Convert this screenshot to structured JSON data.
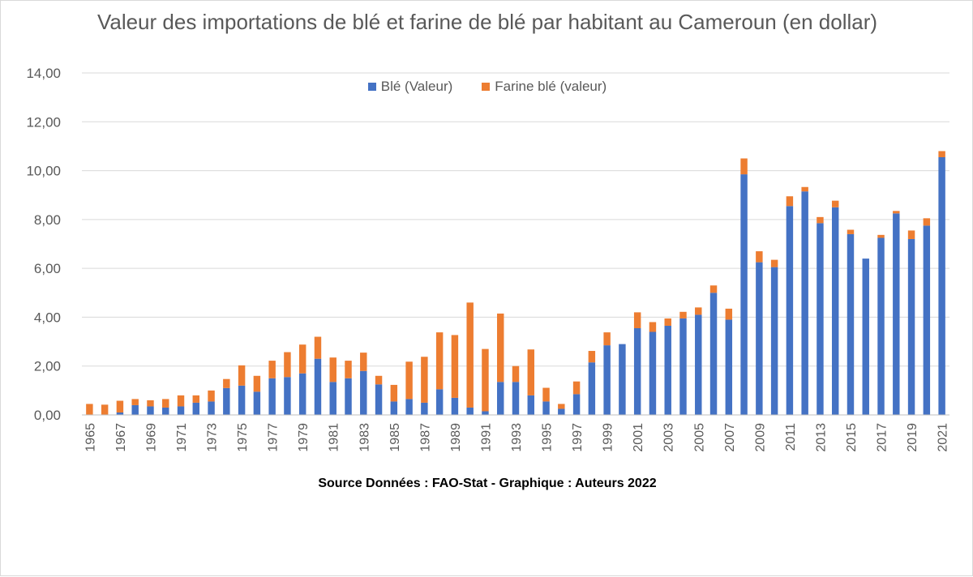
{
  "chart_data": {
    "type": "bar",
    "stacked": true,
    "title": "Valeur des importations de blé et farine de blé par habitant au Cameroun (en dollar)",
    "xlabel": "Source Données : FAO-Stat - Graphique : Auteurs 2022",
    "ylabel": "",
    "ylim": [
      0,
      14
    ],
    "yticks": [
      "0,00",
      "2,00",
      "4,00",
      "6,00",
      "8,00",
      "10,00",
      "12,00",
      "14,00"
    ],
    "grid": true,
    "legend_position": "top",
    "categories": [
      "1965",
      "1966",
      "1967",
      "1968",
      "1969",
      "1970",
      "1971",
      "1972",
      "1973",
      "1974",
      "1975",
      "1976",
      "1977",
      "1978",
      "1979",
      "1980",
      "1981",
      "1982",
      "1983",
      "1984",
      "1985",
      "1986",
      "1987",
      "1988",
      "1989",
      "1990",
      "1991",
      "1992",
      "1993",
      "1994",
      "1995",
      "1996",
      "1997",
      "1998",
      "1999",
      "2000",
      "2001",
      "2002",
      "2003",
      "2004",
      "2005",
      "2006",
      "2007",
      "2008",
      "2009",
      "2010",
      "2011",
      "2012",
      "2013",
      "2014",
      "2015",
      "2016",
      "2017",
      "2018",
      "2019",
      "2020",
      "2021"
    ],
    "x_tick_labels": [
      "1965",
      "1967",
      "1969",
      "1971",
      "1973",
      "1975",
      "1977",
      "1979",
      "1981",
      "1983",
      "1985",
      "1987",
      "1989",
      "1991",
      "1993",
      "1995",
      "1997",
      "1999",
      "2001",
      "2003",
      "2005",
      "2007",
      "2009",
      "2011",
      "2013",
      "2015",
      "2017",
      "2019",
      "2021"
    ],
    "series": [
      {
        "name": "Blé (Valeur)",
        "color": "#4472c4",
        "values": [
          0.0,
          0.0,
          0.1,
          0.4,
          0.35,
          0.3,
          0.35,
          0.5,
          0.55,
          1.1,
          1.2,
          0.95,
          1.5,
          1.55,
          1.7,
          2.3,
          1.35,
          1.5,
          1.8,
          1.25,
          0.55,
          0.65,
          0.5,
          1.05,
          0.7,
          0.3,
          0.15,
          1.35,
          1.35,
          0.8,
          0.55,
          0.25,
          0.85,
          2.15,
          2.85,
          2.9,
          3.55,
          3.4,
          3.65,
          3.95,
          4.1,
          5.0,
          3.9,
          9.85,
          6.25,
          6.05,
          8.55,
          9.15,
          7.85,
          8.5,
          7.4,
          6.4,
          7.25,
          8.25,
          7.2,
          7.75,
          10.55
        ]
      },
      {
        "name": "Farine blé (valeur)",
        "color": "#ed7d31",
        "values": [
          0.45,
          0.42,
          0.48,
          0.25,
          0.25,
          0.35,
          0.45,
          0.3,
          0.45,
          0.37,
          0.83,
          0.65,
          0.72,
          1.02,
          1.18,
          0.9,
          1.0,
          0.72,
          0.75,
          0.35,
          0.68,
          1.53,
          1.88,
          2.33,
          2.57,
          4.3,
          2.55,
          2.8,
          0.65,
          1.88,
          0.56,
          0.2,
          0.52,
          0.47,
          0.53,
          0.0,
          0.65,
          0.4,
          0.3,
          0.27,
          0.3,
          0.3,
          0.45,
          0.65,
          0.45,
          0.3,
          0.4,
          0.18,
          0.25,
          0.27,
          0.18,
          0.0,
          0.12,
          0.1,
          0.35,
          0.3,
          0.25
        ]
      }
    ]
  }
}
